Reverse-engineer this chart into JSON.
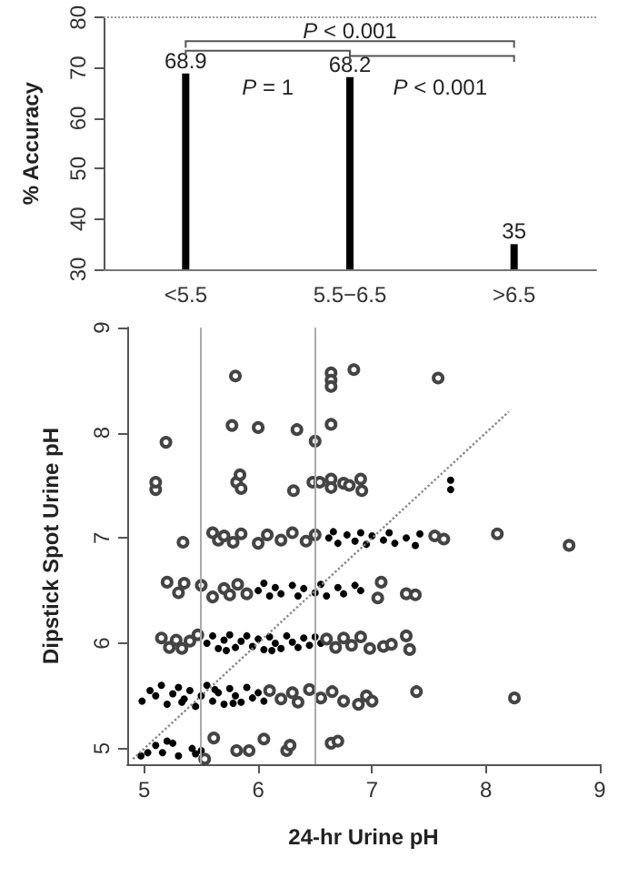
{
  "chart_data": [
    {
      "type": "bar",
      "ylabel": "% Accuracy",
      "categories": [
        "<5.5",
        "5.5−6.5",
        ">6.5"
      ],
      "values": [
        68.9,
        68.2,
        35
      ],
      "color": "#000000",
      "ylim": [
        30,
        80
      ],
      "yticks": [
        30,
        40,
        50,
        60,
        70,
        80
      ],
      "data_labels": true,
      "grid": false,
      "ref_lines": [
        {
          "axis": "y",
          "value": 80,
          "color": "#999999",
          "line_style": "dotted"
        }
      ],
      "annotations": [
        "P < 0.001",
        "P = 1",
        "P < 0.001"
      ]
    },
    {
      "type": "scatter",
      "xlabel": "24-hr Urine pH",
      "ylabel": "Dipstick Spot Urine pH",
      "xlim": [
        4.85,
        9
      ],
      "xticks": [
        5,
        6,
        7,
        8,
        9
      ],
      "ylim": [
        4.85,
        9
      ],
      "yticks": [
        5,
        6,
        7,
        8,
        9
      ],
      "grid": false,
      "ref_lines": [
        {
          "axis": "x",
          "value": 5.5,
          "color": "#aaaaaa"
        },
        {
          "axis": "x",
          "value": 6.5,
          "color": "#aaaaaa"
        }
      ],
      "series": [
        {
          "color": "#000000",
          "marker": "circle",
          "x": [
            4.97,
            5.03,
            5.1,
            5.16,
            5.2,
            5.3,
            5.42,
            5.5,
            5.25,
            5.45,
            4.98,
            5.05,
            5.1,
            5.15,
            5.2,
            5.25,
            5.3,
            5.35,
            5.4,
            5.45,
            5.5,
            5.55,
            5.6,
            5.65,
            5.7,
            5.75,
            5.8,
            5.85,
            5.9,
            5.95,
            6.0,
            6.05,
            5.33,
            5.62,
            5.78,
            5.55,
            5.6,
            5.65,
            5.7,
            5.75,
            5.8,
            5.85,
            5.9,
            5.95,
            6.0,
            6.05,
            6.1,
            6.15,
            6.2,
            6.25,
            6.3,
            6.35,
            6.4,
            6.45,
            6.5,
            6.55,
            5.72,
            6.12,
            6.0,
            6.05,
            6.1,
            6.15,
            6.2,
            6.3,
            6.35,
            6.4,
            6.5,
            6.55,
            6.6,
            6.7,
            6.75,
            6.85,
            6.9,
            6.62,
            6.66,
            6.7,
            6.78,
            6.85,
            6.9,
            6.95,
            7.0,
            7.1,
            7.15,
            7.2,
            7.3,
            7.38,
            7.42,
            7.69,
            7.69
          ],
          "values": [
            4.93,
            4.96,
            5.03,
            4.96,
            5.07,
            4.93,
            5.0,
            4.98,
            5.05,
            4.95,
            5.45,
            5.55,
            5.5,
            5.6,
            5.42,
            5.52,
            5.58,
            5.47,
            5.55,
            5.4,
            5.5,
            5.6,
            5.45,
            5.53,
            5.42,
            5.57,
            5.5,
            5.44,
            5.58,
            5.48,
            5.53,
            5.45,
            5.44,
            5.56,
            5.43,
            6.0,
            6.07,
            5.95,
            6.03,
            6.08,
            5.96,
            6.02,
            6.07,
            5.97,
            6.04,
            5.94,
            6.06,
            6.0,
            5.95,
            6.07,
            6.01,
            5.96,
            6.05,
            5.98,
            6.06,
            6.0,
            5.93,
            5.93,
            6.5,
            6.57,
            6.45,
            6.53,
            6.47,
            6.55,
            6.45,
            6.52,
            6.48,
            6.56,
            6.45,
            6.53,
            6.47,
            6.55,
            6.5,
            7.0,
            7.06,
            6.95,
            7.03,
            6.97,
            7.05,
            6.94,
            7.02,
            6.98,
            7.05,
            6.95,
            7.0,
            6.93,
            7.04,
            7.55,
            7.46
          ]
        },
        {
          "color": "#444444",
          "x": [
            5.8,
            5.77,
            6.0,
            6.34,
            5.19,
            6.5,
            6.64,
            6.64,
            6.64,
            6.84,
            6.64,
            7.58,
            5.1,
            5.1,
            5.81,
            5.84,
            5.85,
            6.31,
            6.48,
            6.54,
            6.64,
            6.64,
            6.75,
            6.8,
            6.9,
            6.91,
            5.34,
            5.6,
            5.65,
            5.7,
            5.78,
            5.85,
            6.0,
            6.08,
            6.2,
            6.3,
            6.42,
            6.5,
            7.55,
            7.63,
            8.1,
            8.73,
            5.2,
            5.3,
            5.35,
            5.5,
            5.6,
            5.7,
            5.75,
            5.82,
            5.9,
            7.08,
            7.3,
            7.38,
            7.05,
            5.15,
            5.22,
            5.28,
            5.33,
            5.4,
            5.47,
            6.6,
            6.68,
            6.75,
            6.82,
            6.9,
            6.98,
            7.1,
            7.17,
            7.3,
            7.33,
            6.1,
            6.2,
            6.3,
            6.35,
            6.45,
            6.55,
            6.65,
            6.75,
            6.88,
            6.95,
            7.0,
            7.39,
            8.25,
            5.53,
            5.61,
            5.81,
            5.92,
            6.05,
            6.25,
            6.28,
            6.64,
            6.7
          ],
          "values": [
            8.54,
            8.07,
            8.05,
            8.03,
            7.91,
            7.92,
            8.57,
            8.5,
            8.44,
            8.6,
            8.08,
            8.52,
            7.46,
            7.53,
            7.53,
            7.6,
            7.47,
            7.45,
            7.53,
            7.53,
            7.56,
            7.48,
            7.52,
            7.5,
            7.56,
            7.45,
            6.96,
            7.05,
            6.98,
            7.02,
            6.96,
            7.04,
            6.95,
            7.03,
            6.98,
            7.05,
            6.97,
            7.03,
            7.02,
            6.99,
            7.04,
            6.93,
            6.58,
            6.48,
            6.57,
            6.55,
            6.44,
            6.52,
            6.46,
            6.56,
            6.47,
            6.58,
            6.47,
            6.46,
            6.43,
            6.05,
            5.96,
            6.03,
            5.95,
            6.02,
            6.08,
            6.04,
            5.96,
            6.05,
            5.98,
            6.06,
            5.95,
            5.97,
            5.99,
            6.07,
            5.94,
            5.55,
            5.47,
            5.53,
            5.44,
            5.56,
            5.48,
            5.54,
            5.45,
            5.42,
            5.5,
            5.45,
            5.54,
            5.48,
            4.9,
            5.1,
            4.98,
            4.98,
            5.09,
            4.98,
            5.03,
            5.05,
            5.07
          ]
        },
        {
          "type": "line",
          "color": "#888888",
          "marker": "none",
          "line_style": "dotted",
          "x": [
            4.9,
            8.2
          ],
          "values": [
            4.9,
            8.2
          ]
        }
      ]
    }
  ]
}
